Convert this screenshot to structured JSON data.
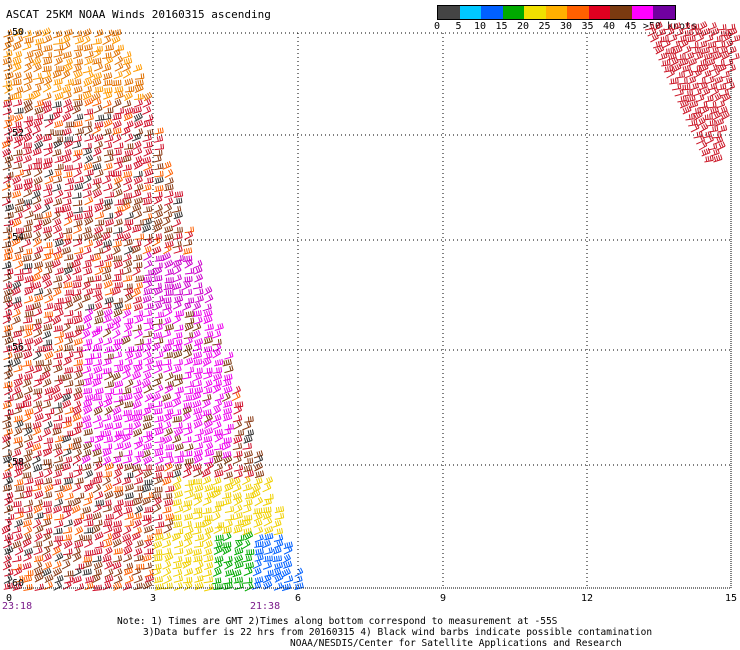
{
  "header": {
    "title": "ASCAT 25KM NOAA Winds 20160315 ascending"
  },
  "legend": {
    "colors": [
      "#444444",
      "#00c8ff",
      "#0060ff",
      "#00aa00",
      "#f0e000",
      "#ffb000",
      "#ff6000",
      "#e00020",
      "#7a3a10",
      "#ff00ff",
      "#7000a0"
    ],
    "ticks": [
      "0",
      "5",
      "10",
      "15",
      "20",
      "25",
      "30",
      "35",
      "40",
      "45",
      ">50 knots"
    ]
  },
  "axes": {
    "lat_labels": [
      "-50",
      "-52",
      "-54",
      "-56",
      "-58",
      "-60"
    ],
    "lon_labels": [
      "0",
      "3",
      "6",
      "9",
      "12",
      "15"
    ]
  },
  "times": {
    "left": "23:18",
    "right": "21:38"
  },
  "footer": {
    "line1": "Note: 1) Times are GMT 2)Times along bottom correspond to measurement at -55S",
    "line2": "3)Data buffer is 22 hrs from 20160315 4) Black wind barbs indicate possible contamination",
    "line3": "NOAA/NESDIS/Center for Satellite Applications and Research"
  }
}
